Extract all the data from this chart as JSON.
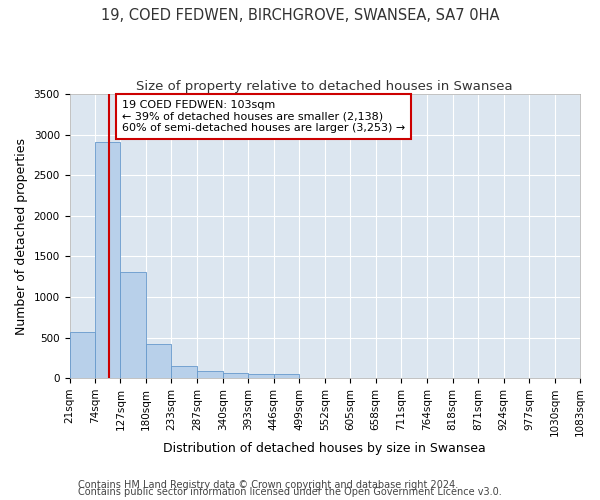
{
  "title1": "19, COED FEDWEN, BIRCHGROVE, SWANSEA, SA7 0HA",
  "title2": "Size of property relative to detached houses in Swansea",
  "xlabel": "Distribution of detached houses by size in Swansea",
  "ylabel": "Number of detached properties",
  "footnote1": "Contains HM Land Registry data © Crown copyright and database right 2024.",
  "footnote2": "Contains public sector information licensed under the Open Government Licence v3.0.",
  "bin_edges": [
    21,
    74,
    127,
    180,
    233,
    287,
    340,
    393,
    446,
    499,
    552,
    605,
    658,
    711,
    764,
    818,
    871,
    924,
    977,
    1030,
    1083
  ],
  "bar_heights": [
    570,
    2910,
    1310,
    415,
    155,
    85,
    60,
    55,
    45,
    0,
    0,
    0,
    0,
    0,
    0,
    0,
    0,
    0,
    0,
    0
  ],
  "bar_color": "#b8d0ea",
  "bar_edge_color": "#6699cc",
  "subject_value": 103,
  "subject_label": "19 COED FEDWEN: 103sqm",
  "annotation_line1": "← 39% of detached houses are smaller (2,138)",
  "annotation_line2": "60% of semi-detached houses are larger (3,253) →",
  "vline_color": "#cc0000",
  "annotation_box_edgecolor": "#cc0000",
  "ylim": [
    0,
    3500
  ],
  "yticks": [
    0,
    500,
    1000,
    1500,
    2000,
    2500,
    3000,
    3500
  ],
  "fig_bg_color": "#ffffff",
  "plot_bg_color": "#dce6f0",
  "grid_color": "#ffffff",
  "title1_fontsize": 10.5,
  "title2_fontsize": 9.5,
  "axis_label_fontsize": 9,
  "tick_fontsize": 7.5,
  "annotation_fontsize": 8,
  "footnote_fontsize": 7
}
